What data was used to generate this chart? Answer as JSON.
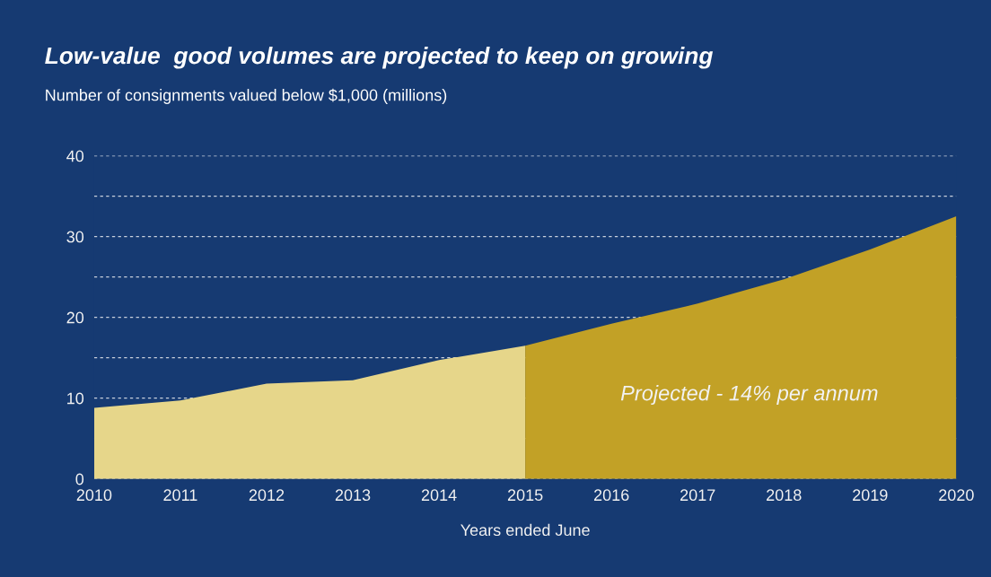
{
  "chart_data": {
    "type": "area",
    "title": "Low-value  good volumes are projected to keep on growing",
    "subtitle": "Number of consignments valued below $1,000 (millions)",
    "xlabel": "Years ended June",
    "series": [
      {
        "color": "#e6d68a",
        "x": [
          2010,
          2011,
          2012,
          2013,
          2014,
          2015
        ],
        "values": [
          8.8,
          9.7,
          11.8,
          12.2,
          14.7,
          16.5
        ]
      },
      {
        "color": "#c2a126",
        "x": [
          2015,
          2016,
          2017,
          2018,
          2019,
          2020
        ],
        "values": [
          16.5,
          19.2,
          21.7,
          24.7,
          28.4,
          32.5
        ]
      }
    ],
    "annotations": [
      "Projected - 14% per annum"
    ],
    "xlim": [
      2010,
      2020
    ],
    "xticks": [
      2010,
      2011,
      2012,
      2013,
      2014,
      2015,
      2016,
      2017,
      2018,
      2019,
      2020
    ],
    "ylim": [
      0,
      40
    ],
    "yticks": [
      0,
      {
        "value": 5,
        "label": null
      },
      10,
      {
        "value": 15,
        "label": null
      },
      20,
      {
        "value": 25,
        "label": null
      },
      30,
      {
        "value": 35,
        "label": null
      },
      40
    ],
    "grid": "y",
    "legend": false
  }
}
